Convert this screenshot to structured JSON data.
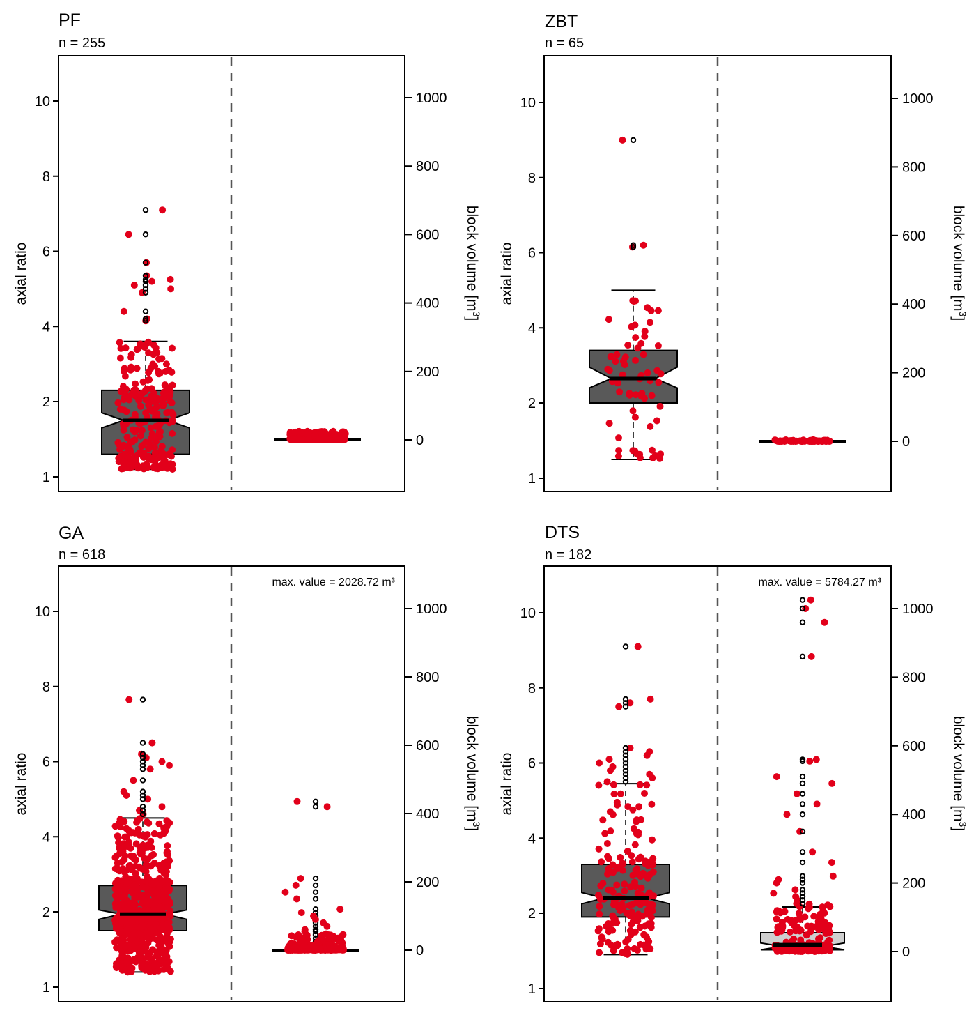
{
  "chart_data": [
    {
      "type": "box",
      "title": "PF",
      "subtitle": "n = 255",
      "ylabel_left": "axial ratio",
      "ylabel_right": "block volume [m³]",
      "ylabel_right_parts": {
        "main": "block volume [m",
        "sup": "3",
        "close": "]"
      },
      "left_axis": {
        "ticks": [
          1,
          2,
          4,
          6,
          8,
          10
        ],
        "tick_labels": [
          "1",
          "2",
          "4",
          "6",
          "8",
          "10"
        ],
        "range": [
          0.6,
          11.2
        ]
      },
      "right_axis": {
        "ticks": [
          0,
          200,
          400,
          600,
          800,
          1000
        ],
        "tick_labels": [
          "0",
          "200",
          "400",
          "600",
          "800",
          "1000"
        ],
        "range": [
          -150,
          1100
        ]
      },
      "divider": "dashed",
      "max_note": null,
      "axial_ratio": {
        "box_fill": "#595959",
        "whisker_low": 1.1,
        "q1": 1.3,
        "notch_low": 1.65,
        "median": 1.75,
        "notch_high": 1.85,
        "q3": 2.3,
        "whisker_high": 3.6,
        "outliers": [
          4.15,
          4.2,
          4.4,
          4.9,
          5.0,
          5.1,
          5.2,
          5.25,
          5.35,
          5.7,
          6.45,
          7.1
        ],
        "n": 255
      },
      "block_volume": {
        "box_fill": "#cfcfcf",
        "whisker_low": 0,
        "q1": 0,
        "median": 0,
        "q3": 1,
        "whisker_high": 2,
        "outliers": [],
        "point_max": 25,
        "n": 255
      }
    },
    {
      "type": "box",
      "title": "ZBT",
      "subtitle": "n = 65",
      "ylabel_left": "axial ratio",
      "ylabel_right": "block volume [m³]",
      "ylabel_right_parts": {
        "main": "block volume [m",
        "sup": "3",
        "close": "]"
      },
      "left_axis": {
        "ticks": [
          1,
          2,
          4,
          6,
          8,
          10
        ],
        "tick_labels": [
          "1",
          "2",
          "4",
          "6",
          "8",
          "10"
        ],
        "range": [
          0.6,
          11.2
        ]
      },
      "right_axis": {
        "ticks": [
          0,
          200,
          400,
          600,
          800,
          1000
        ],
        "tick_labels": [
          "0",
          "200",
          "400",
          "600",
          "800",
          "1000"
        ],
        "range": [
          -150,
          1100
        ]
      },
      "divider": "dashed",
      "max_note": null,
      "axial_ratio": {
        "box_fill": "#595959",
        "whisker_low": 1.25,
        "q1": 2.0,
        "notch_low": 2.4,
        "median": 2.65,
        "notch_high": 2.95,
        "q3": 3.4,
        "whisker_high": 5.0,
        "outliers": [
          6.15,
          6.2,
          9.0
        ],
        "n": 65
      },
      "block_volume": {
        "box_fill": "#cfcfcf",
        "whisker_low": 0,
        "q1": 0,
        "median": 0,
        "q3": 0.5,
        "whisker_high": 1,
        "outliers": [],
        "point_max": 5,
        "n": 65
      }
    },
    {
      "type": "box",
      "title": "GA",
      "subtitle": "n = 618",
      "ylabel_left": "axial ratio",
      "ylabel_right": "block volume [m³]",
      "ylabel_right_parts": {
        "main": "block volume [m",
        "sup": "3",
        "close": "]"
      },
      "left_axis": {
        "ticks": [
          1,
          2,
          4,
          6,
          8,
          10
        ],
        "tick_labels": [
          "1",
          "2",
          "4",
          "6",
          "8",
          "10"
        ],
        "range": [
          0.6,
          11.2
        ]
      },
      "right_axis": {
        "ticks": [
          0,
          200,
          400,
          600,
          800,
          1000
        ],
        "tick_labels": [
          "0",
          "200",
          "400",
          "600",
          "800",
          "1000"
        ],
        "range": [
          -150,
          1100
        ]
      },
      "divider": "dashed",
      "max_note": "max. value = 2028.72 m³",
      "axial_ratio": {
        "box_fill": "#595959",
        "whisker_low": 1.2,
        "q1": 1.75,
        "notch_low": 1.9,
        "median": 1.97,
        "notch_high": 2.05,
        "q3": 2.7,
        "whisker_high": 4.5,
        "outliers": [
          4.6,
          4.7,
          4.8,
          5.0,
          5.1,
          5.2,
          5.5,
          5.8,
          5.9,
          6.0,
          6.1,
          6.2,
          6.5,
          7.65
        ],
        "n": 618
      },
      "block_volume": {
        "box_fill": "#cfcfcf",
        "whisker_low": 0,
        "q1": 0,
        "median": 0,
        "q3": 2,
        "whisker_high": 5,
        "outliers": [
          15,
          25,
          35,
          45,
          55,
          60,
          70,
          80,
          90,
          100,
          110,
          120,
          150,
          170,
          190,
          210,
          420,
          435
        ],
        "point_max": 30,
        "n": 618
      }
    },
    {
      "type": "box",
      "title": "DTS",
      "subtitle": "n = 182",
      "ylabel_left": "axial ratio",
      "ylabel_right": "block volume [m³]",
      "ylabel_right_parts": {
        "main": "block volume [m",
        "sup": "3",
        "close": "]"
      },
      "left_axis": {
        "ticks": [
          1,
          2,
          4,
          6,
          8,
          10
        ],
        "tick_labels": [
          "1",
          "2",
          "4",
          "6",
          "8",
          "10"
        ],
        "range": [
          0.6,
          11.2
        ]
      },
      "right_axis": {
        "ticks": [
          0,
          200,
          400,
          600,
          800,
          1000
        ],
        "tick_labels": [
          "0",
          "200",
          "400",
          "600",
          "800",
          "1000"
        ],
        "range": [
          -150,
          1100
        ]
      },
      "divider": "dashed",
      "max_note": "max. value = 5784.27 m³",
      "axial_ratio": {
        "box_fill": "#595959",
        "whisker_low": 1.45,
        "q1": 1.95,
        "notch_low": 2.25,
        "median": 2.4,
        "notch_high": 2.55,
        "q3": 3.3,
        "whisker_high": 5.45,
        "outliers": [
          5.5,
          5.6,
          5.7,
          5.8,
          5.9,
          6.0,
          6.1,
          6.2,
          6.3,
          6.4,
          7.5,
          7.6,
          7.7,
          9.1
        ],
        "n": 182
      },
      "block_volume": {
        "box_fill": "#cfcfcf",
        "whisker_low": 0,
        "q1": 5,
        "notch_low": 5,
        "median": 15,
        "notch_high": 25,
        "q3": 55,
        "whisker_high": 130,
        "outliers": [
          140,
          150,
          160,
          170,
          180,
          200,
          210,
          220,
          260,
          290,
          350,
          400,
          430,
          460,
          490,
          510,
          555,
          560,
          860,
          960,
          1000,
          1025
        ],
        "point_max": 1040,
        "n": 182
      }
    }
  ],
  "colors": {
    "point": "#e2001a",
    "outlier_stroke": "#000000",
    "axis": "#000000",
    "divider": "#555555",
    "box_dark": "#595959",
    "box_light": "#cfcfcf"
  }
}
